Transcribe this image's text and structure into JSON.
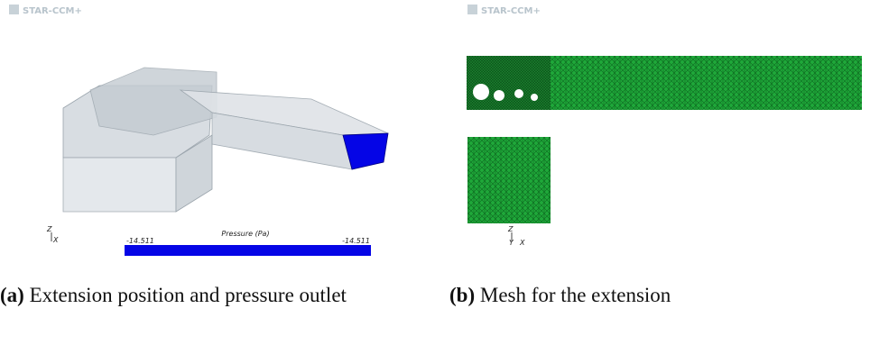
{
  "figure": {
    "a": {
      "logo": "STAR-CCM+",
      "legend_title": "Pressure (Pa)",
      "range_min": -14.511,
      "range_max": -14.511,
      "axis_z": "Z",
      "axis_x": "X",
      "caption_label": "(a)",
      "caption": "Extension position and pressure outlet"
    },
    "b": {
      "logo": "STAR-CCM+",
      "axis_z": "Z",
      "axis_y": "Y",
      "axis_x": "X",
      "caption_label": "(b)",
      "caption": "Mesh for the extension"
    }
  }
}
